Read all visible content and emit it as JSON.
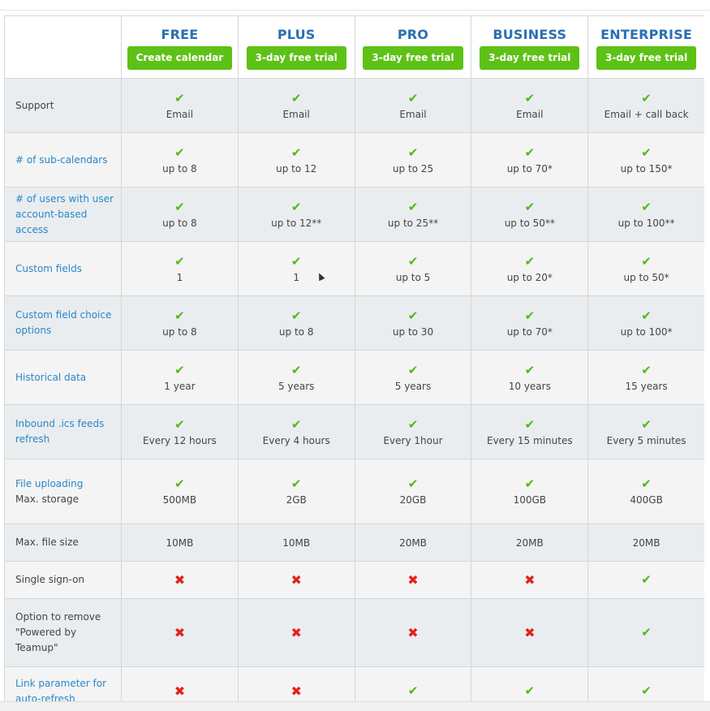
{
  "plans": [
    {
      "name": "FREE",
      "button": "Create calendar"
    },
    {
      "name": "PLUS",
      "button": "3-day free trial"
    },
    {
      "name": "PRO",
      "button": "3-day free trial"
    },
    {
      "name": "BUSINESS",
      "button": "3-day free trial"
    },
    {
      "name": "ENTERPRISE",
      "button": "3-day free trial"
    }
  ],
  "rows": [
    {
      "label": "Support",
      "style": "plain",
      "check": true,
      "values": [
        "Email",
        "Email",
        "Email",
        "Email",
        "Email + call back"
      ]
    },
    {
      "label": "# of sub-calendars",
      "style": "link",
      "check": true,
      "values": [
        "up to 8",
        "up to 12",
        "up to 25",
        "up to 70*",
        "up to 150*"
      ]
    },
    {
      "label": "# of users with user account-based access",
      "style": "link",
      "check": true,
      "values": [
        "up to 8",
        "up to 12**",
        "up to 25**",
        "up to 50**",
        "up to 100**"
      ]
    },
    {
      "label": "Custom fields",
      "style": "link",
      "check": true,
      "values": [
        "1",
        "1",
        "up to 5",
        "up to 20*",
        "up to 50*"
      ]
    },
    {
      "label": "Custom field choice options",
      "style": "link",
      "check": true,
      "values": [
        "up to 8",
        "up to 8",
        "up to 30",
        "up to 70*",
        "up to 100*"
      ]
    },
    {
      "label": "Historical data",
      "style": "link",
      "check": true,
      "values": [
        "1 year",
        "5 years",
        "5 years",
        "10 years",
        "15 years"
      ]
    },
    {
      "label": "Inbound .ics feeds refresh",
      "style": "link",
      "check": true,
      "values": [
        "Every 12 hours",
        "Every 4 hours",
        "Every 1hour",
        "Every 15 minutes",
        "Every 5 minutes"
      ]
    },
    {
      "label": "File uploading",
      "sublabel": "Max. storage",
      "style": "mixed",
      "check": true,
      "values": [
        "500MB",
        "2GB",
        "20GB",
        "100GB",
        "400GB"
      ]
    },
    {
      "label": "Max. file size",
      "style": "plain",
      "check": false,
      "values": [
        "10MB",
        "10MB",
        "20MB",
        "20MB",
        "20MB"
      ]
    },
    {
      "label": "Single sign-on",
      "style": "plain",
      "marks": [
        "cross",
        "cross",
        "cross",
        "cross",
        "check"
      ]
    },
    {
      "label": "Option to remove \"Powered by Teamup\"",
      "style": "plain",
      "marks": [
        "cross",
        "cross",
        "cross",
        "cross",
        "check"
      ]
    },
    {
      "label": "Link parameter for auto-refresh",
      "style": "link",
      "marks": [
        "cross",
        "cross",
        "check",
        "check",
        "check"
      ]
    }
  ],
  "icons": {
    "check": "checkmark-icon",
    "cross": "cross-icon"
  },
  "colors": {
    "accent_button": "#5ec116",
    "plan_title": "#2a6fb3",
    "link": "#2a86c7",
    "check": "#4cbb17",
    "cross": "#e2231a"
  }
}
